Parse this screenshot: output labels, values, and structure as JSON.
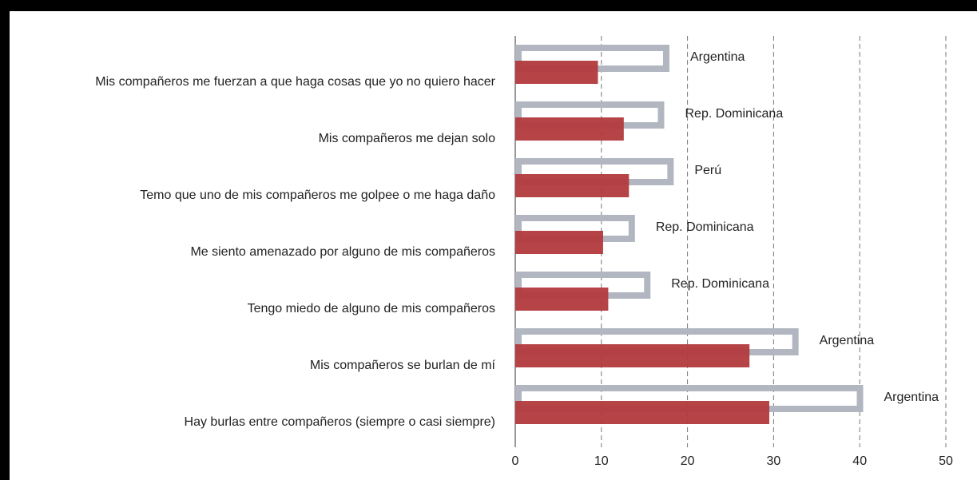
{
  "chart_data": {
    "type": "bar",
    "orientation": "horizontal",
    "categories": [
      "Mis compañeros me fuerzan a que haga cosas que yo no quiero hacer",
      "Mis compañeros me dejan solo",
      "Temo que uno de mis compañeros me golpee o me haga daño",
      "Me siento amenazado por alguno de mis compañeros",
      "Tengo miedo de alguno de mis compañeros",
      "Mis compañeros se burlan de mí",
      "Hay burlas entre compañeros  (siempre o casi siempre)"
    ],
    "series": [
      {
        "color": "#b1b6c1",
        "values": [
          17.9,
          17.3,
          18.4,
          13.9,
          15.7,
          32.9,
          40.4
        ],
        "labels": [
          "Argentina",
          "Rep. Dominicana",
          "Perú",
          "Rep. Dominicana",
          "Rep. Dominicana",
          "Argentina",
          "Argentina"
        ]
      },
      {
        "color": "#b23a3d",
        "values": [
          9.6,
          12.6,
          13.2,
          10.2,
          10.8,
          27.2,
          29.5
        ]
      }
    ],
    "xlim": [
      0,
      50
    ],
    "xticks": [
      0,
      10,
      20,
      30,
      40,
      50
    ],
    "grid": true
  }
}
